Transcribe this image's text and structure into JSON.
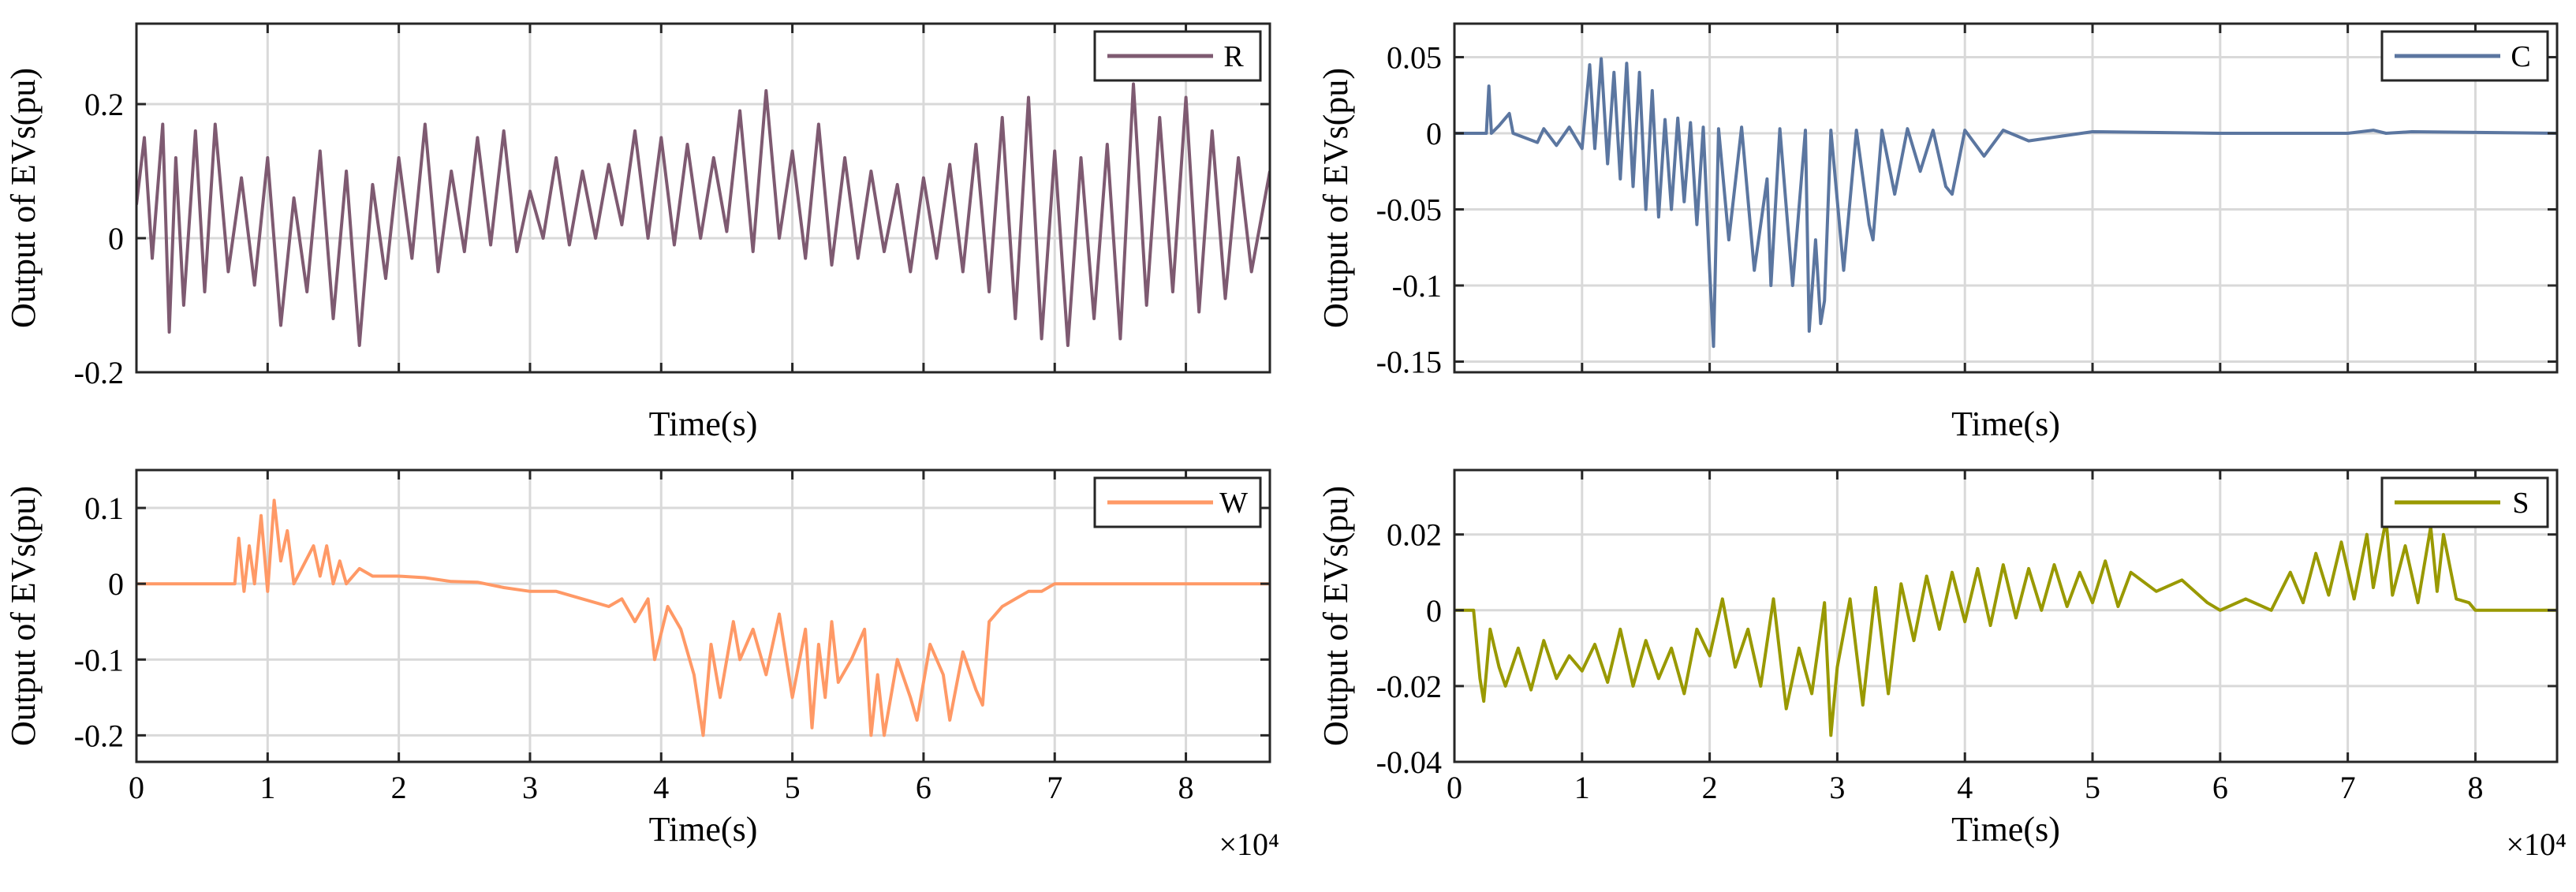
{
  "chart_data": [
    {
      "type": "line",
      "title": "",
      "xlabel": "Time(s)",
      "ylabel": "Output of EVs(pu)",
      "xlim": [
        0,
        86400
      ],
      "ylim": [
        -0.2,
        0.32
      ],
      "xticks": [
        0,
        10000,
        20000,
        30000,
        40000,
        50000,
        60000,
        70000,
        80000
      ],
      "yticks": [
        -0.2,
        0,
        0.2
      ],
      "ytick_labels": [
        "-0.2",
        "0",
        "0.2"
      ],
      "xtick_labels": [],
      "x_exponent": "",
      "grid": true,
      "legend_position": "top-right",
      "series": [
        {
          "name": "R",
          "color": "#7e5a71",
          "x": [
            0,
            600,
            1200,
            2000,
            2500,
            3000,
            3600,
            4500,
            5200,
            6000,
            7000,
            8000,
            9000,
            10000,
            11000,
            12000,
            13000,
            14000,
            15000,
            16000,
            17000,
            18000,
            19000,
            20000,
            21000,
            22000,
            23000,
            24000,
            25000,
            26000,
            27000,
            28000,
            29000,
            30000,
            31000,
            32000,
            33000,
            34000,
            35000,
            36000,
            37000,
            38000,
            39000,
            40000,
            41000,
            42000,
            43000,
            44000,
            45000,
            46000,
            47000,
            48000,
            49000,
            50000,
            51000,
            52000,
            53000,
            54000,
            55000,
            56000,
            57000,
            58000,
            59000,
            60000,
            61000,
            62000,
            63000,
            64000,
            65000,
            66000,
            67000,
            68000,
            69000,
            70000,
            71000,
            72000,
            73000,
            74000,
            75000,
            76000,
            77000,
            78000,
            79000,
            80000,
            81000,
            82000,
            83000,
            84000,
            85000,
            86400
          ],
          "y": [
            0.05,
            0.15,
            -0.03,
            0.17,
            -0.14,
            0.12,
            -0.1,
            0.16,
            -0.08,
            0.17,
            -0.05,
            0.09,
            -0.07,
            0.12,
            -0.13,
            0.06,
            -0.08,
            0.13,
            -0.12,
            0.1,
            -0.16,
            0.08,
            -0.06,
            0.12,
            -0.03,
            0.17,
            -0.05,
            0.1,
            -0.02,
            0.15,
            -0.01,
            0.16,
            -0.02,
            0.07,
            0.0,
            0.12,
            -0.01,
            0.1,
            0.0,
            0.11,
            0.02,
            0.16,
            0.0,
            0.15,
            -0.01,
            0.14,
            0.0,
            0.12,
            0.01,
            0.19,
            -0.02,
            0.22,
            0.0,
            0.13,
            -0.03,
            0.17,
            -0.04,
            0.12,
            -0.03,
            0.1,
            -0.02,
            0.08,
            -0.05,
            0.09,
            -0.03,
            0.11,
            -0.05,
            0.14,
            -0.08,
            0.18,
            -0.12,
            0.21,
            -0.15,
            0.13,
            -0.16,
            0.12,
            -0.12,
            0.14,
            -0.15,
            0.23,
            -0.1,
            0.18,
            -0.08,
            0.21,
            -0.11,
            0.16,
            -0.09,
            0.12,
            -0.05,
            0.1
          ]
        }
      ]
    },
    {
      "type": "line",
      "title": "",
      "xlabel": "Time(s)",
      "ylabel": "Output of EVs(pu)",
      "xlim": [
        0,
        86400
      ],
      "ylim": [
        -0.157,
        0.072
      ],
      "xticks": [
        0,
        10000,
        20000,
        30000,
        40000,
        50000,
        60000,
        70000,
        80000
      ],
      "yticks": [
        -0.15,
        -0.1,
        -0.05,
        0,
        0.05
      ],
      "ytick_labels": [
        "-0.15",
        "-0.1",
        "-0.05",
        "0",
        "0.05"
      ],
      "xtick_labels": [],
      "x_exponent": "",
      "grid": true,
      "legend_position": "top-right",
      "series": [
        {
          "name": "C",
          "color": "#5b76a0",
          "x": [
            0,
            2500,
            2700,
            2900,
            3500,
            4300,
            4600,
            6500,
            7000,
            8000,
            9000,
            10000,
            10600,
            11000,
            11500,
            12000,
            12500,
            13000,
            13500,
            14000,
            14500,
            15000,
            15500,
            16000,
            16500,
            17000,
            17500,
            18000,
            18500,
            19000,
            19500,
            20000,
            20300,
            20700,
            21500,
            22500,
            23500,
            24500,
            24800,
            25500,
            26500,
            27500,
            27800,
            28300,
            28700,
            29000,
            29500,
            30500,
            31500,
            32500,
            32800,
            33500,
            34500,
            35500,
            36500,
            37500,
            38500,
            39000,
            40000,
            41500,
            43000,
            45000,
            50000,
            60000,
            70000,
            72000,
            73000,
            75000,
            86400
          ],
          "y": [
            0,
            0,
            0.031,
            0,
            0.005,
            0.013,
            0,
            -0.006,
            0.003,
            -0.008,
            0.004,
            -0.01,
            0.045,
            -0.01,
            0.049,
            -0.02,
            0.04,
            -0.03,
            0.046,
            -0.035,
            0.04,
            -0.05,
            0.028,
            -0.055,
            0.009,
            -0.05,
            0.01,
            -0.045,
            0.007,
            -0.06,
            0.004,
            -0.09,
            -0.14,
            0.003,
            -0.07,
            0.004,
            -0.09,
            -0.03,
            -0.1,
            0.003,
            -0.1,
            0.002,
            -0.13,
            -0.07,
            -0.125,
            -0.11,
            0.002,
            -0.09,
            0.002,
            -0.06,
            -0.07,
            0.002,
            -0.04,
            0.003,
            -0.025,
            0.002,
            -0.035,
            -0.04,
            0.002,
            -0.015,
            0.002,
            -0.005,
            0.001,
            0.0,
            0.0,
            0.002,
            0.0,
            0.001,
            0.0
          ]
        }
      ]
    },
    {
      "type": "line",
      "title": "",
      "xlabel": "Time(s)",
      "ylabel": "Output of EVs(pu)",
      "xlim": [
        0,
        86400
      ],
      "ylim": [
        -0.235,
        0.15
      ],
      "xticks": [
        0,
        10000,
        20000,
        30000,
        40000,
        50000,
        60000,
        70000,
        80000
      ],
      "yticks": [
        -0.2,
        -0.1,
        0,
        0.1
      ],
      "ytick_labels": [
        "-0.2",
        "-0.1",
        "0",
        "0.1"
      ],
      "xtick_labels": [
        "0",
        "1",
        "2",
        "3",
        "4",
        "5",
        "6",
        "7",
        "8"
      ],
      "x_exponent": "×10⁴",
      "grid": true,
      "legend_position": "top-right",
      "series": [
        {
          "name": "W",
          "color": "#ff9966",
          "x": [
            0,
            7500,
            7800,
            8200,
            8600,
            9000,
            9500,
            10000,
            10500,
            11000,
            11500,
            12000,
            13500,
            14000,
            14500,
            15000,
            15500,
            16000,
            17000,
            18000,
            19000,
            20000,
            22000,
            24000,
            26000,
            28000,
            30000,
            32000,
            34000,
            36000,
            37000,
            38000,
            39000,
            39500,
            40500,
            41500,
            42500,
            43200,
            43800,
            44500,
            45500,
            46000,
            47000,
            48000,
            49000,
            50000,
            51000,
            51500,
            52000,
            52500,
            53000,
            53500,
            54500,
            55500,
            56000,
            56500,
            57000,
            58000,
            59000,
            59500,
            60500,
            61500,
            62000,
            63000,
            64000,
            64500,
            65000,
            66000,
            67000,
            68000,
            69000,
            70000,
            86400
          ],
          "y": [
            0,
            0,
            0.06,
            -0.01,
            0.05,
            0.0,
            0.09,
            -0.01,
            0.11,
            0.03,
            0.07,
            0.0,
            0.05,
            0.01,
            0.05,
            0.0,
            0.03,
            0.0,
            0.02,
            0.01,
            0.01,
            0.01,
            0.008,
            0.003,
            0.002,
            -0.005,
            -0.01,
            -0.01,
            -0.02,
            -0.03,
            -0.02,
            -0.05,
            -0.02,
            -0.1,
            -0.03,
            -0.06,
            -0.12,
            -0.2,
            -0.08,
            -0.15,
            -0.05,
            -0.1,
            -0.06,
            -0.12,
            -0.04,
            -0.15,
            -0.06,
            -0.19,
            -0.08,
            -0.15,
            -0.05,
            -0.13,
            -0.1,
            -0.06,
            -0.2,
            -0.12,
            -0.2,
            -0.1,
            -0.15,
            -0.18,
            -0.08,
            -0.12,
            -0.18,
            -0.09,
            -0.14,
            -0.16,
            -0.05,
            -0.03,
            -0.02,
            -0.01,
            -0.01,
            0.0,
            0.0
          ]
        }
      ]
    },
    {
      "type": "line",
      "title": "",
      "xlabel": "Time(s)",
      "ylabel": "Output of EVs(pu)",
      "xlim": [
        0,
        86400
      ],
      "ylim": [
        -0.04,
        0.037
      ],
      "xticks": [
        0,
        10000,
        20000,
        30000,
        40000,
        50000,
        60000,
        70000,
        80000
      ],
      "yticks": [
        -0.04,
        -0.02,
        0,
        0.02
      ],
      "ytick_labels": [
        "-0.04",
        "-0.02",
        "0",
        "0.02"
      ],
      "xtick_labels": [
        "0",
        "1",
        "2",
        "3",
        "4",
        "5",
        "6",
        "7",
        "8"
      ],
      "x_exponent": "×10⁴",
      "grid": true,
      "legend_position": "top-right",
      "series": [
        {
          "name": "S",
          "color": "#999900",
          "x": [
            0,
            1500,
            2000,
            2300,
            2800,
            3500,
            4000,
            5000,
            6000,
            7000,
            8000,
            9000,
            10000,
            11000,
            12000,
            13000,
            14000,
            15000,
            16000,
            17000,
            18000,
            19000,
            20000,
            21000,
            22000,
            23000,
            24000,
            25000,
            26000,
            27000,
            28000,
            29000,
            29500,
            30000,
            31000,
            32000,
            33000,
            34000,
            35000,
            36000,
            37000,
            38000,
            39000,
            40000,
            41000,
            42000,
            43000,
            44000,
            45000,
            46000,
            47000,
            48000,
            49000,
            50000,
            51000,
            52000,
            53000,
            55000,
            57000,
            59000,
            60000,
            62000,
            64000,
            65500,
            66500,
            67500,
            68500,
            69500,
            70500,
            71500,
            72000,
            73000,
            73500,
            74500,
            75500,
            76500,
            77000,
            77500,
            78500,
            79500,
            80000,
            86400
          ],
          "y": [
            0,
            0,
            -0.018,
            -0.024,
            -0.005,
            -0.015,
            -0.02,
            -0.01,
            -0.021,
            -0.008,
            -0.018,
            -0.012,
            -0.016,
            -0.009,
            -0.019,
            -0.005,
            -0.02,
            -0.008,
            -0.018,
            -0.01,
            -0.022,
            -0.005,
            -0.012,
            0.003,
            -0.015,
            -0.005,
            -0.02,
            0.003,
            -0.026,
            -0.01,
            -0.022,
            0.002,
            -0.033,
            -0.015,
            0.003,
            -0.025,
            0.006,
            -0.022,
            0.007,
            -0.008,
            0.009,
            -0.005,
            0.01,
            -0.003,
            0.011,
            -0.004,
            0.012,
            -0.002,
            0.011,
            0.0,
            0.012,
            0.001,
            0.01,
            0.002,
            0.013,
            0.001,
            0.01,
            0.005,
            0.008,
            0.002,
            0.0,
            0.003,
            0.0,
            0.01,
            0.002,
            0.015,
            0.004,
            0.018,
            0.003,
            0.02,
            0.006,
            0.024,
            0.004,
            0.017,
            0.002,
            0.022,
            0.005,
            0.02,
            0.003,
            0.002,
            0.0,
            0.0
          ]
        }
      ]
    }
  ]
}
